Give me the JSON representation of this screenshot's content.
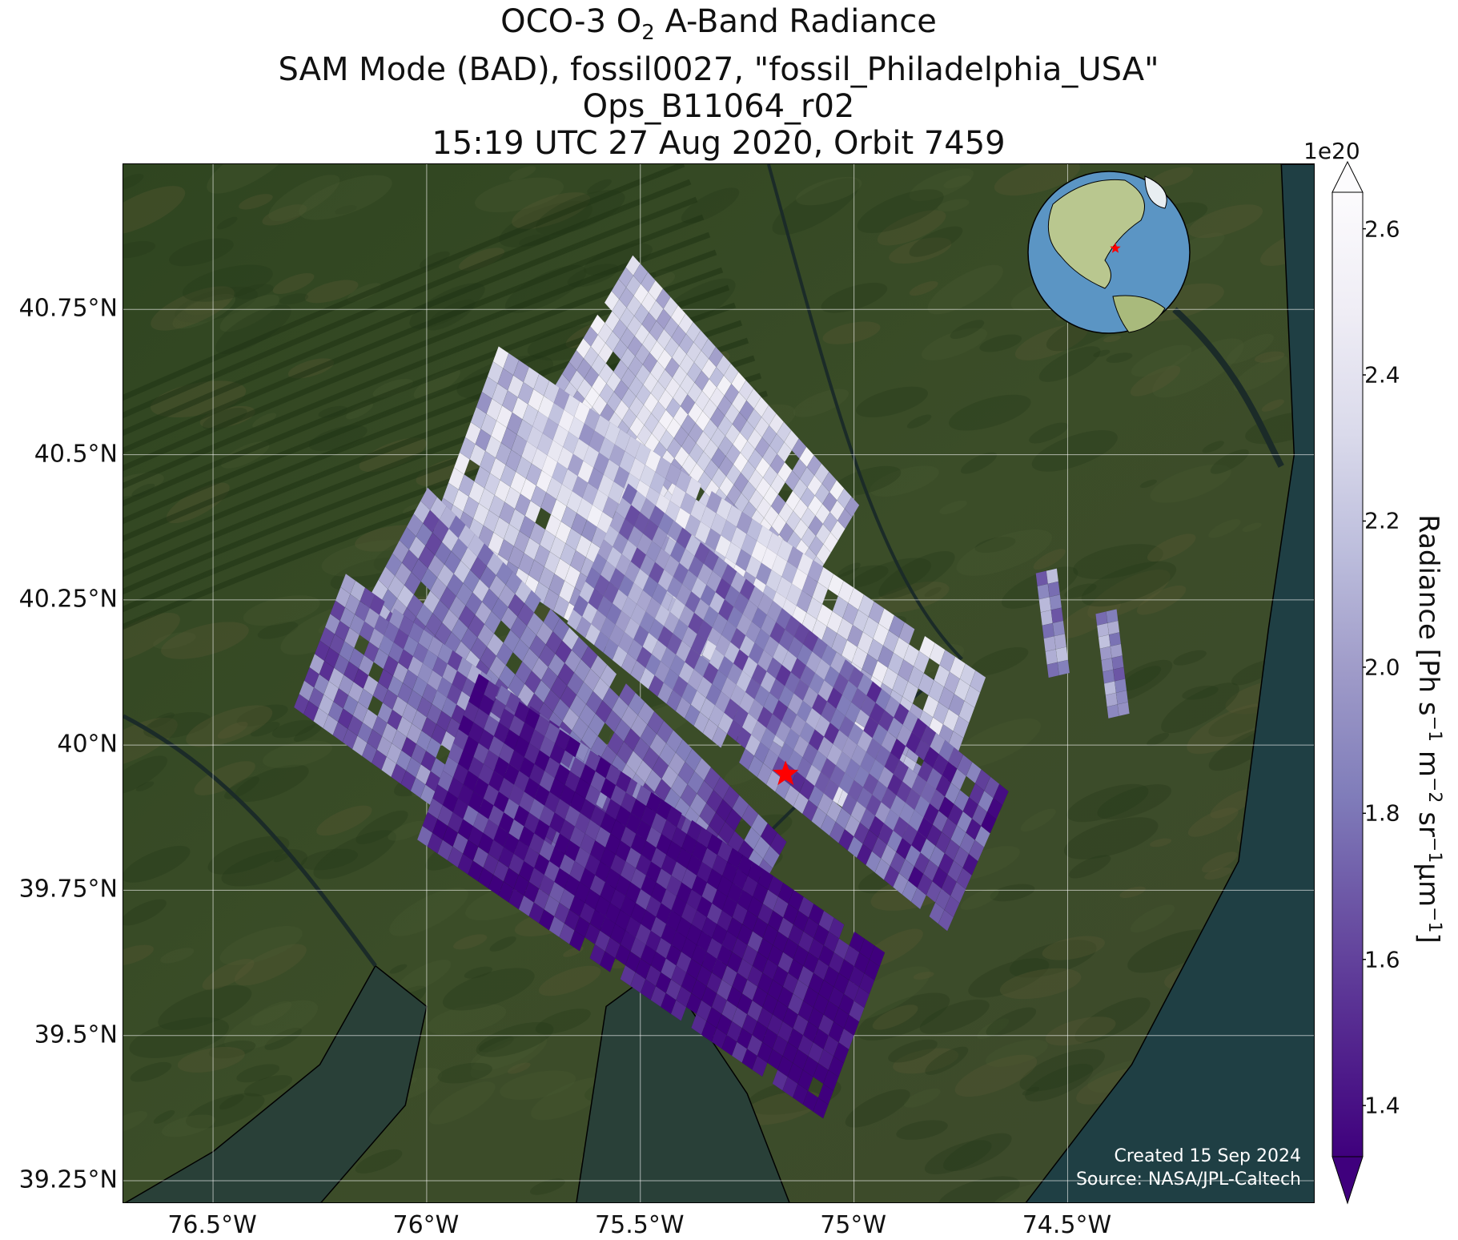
{
  "title": {
    "line1_prefix": "OCO-3 O",
    "line1_sub": "2",
    "line1_suffix": " A-Band Radiance",
    "line2": "SAM Mode (BAD), fossil0027, \"fossil_Philadelphia_USA\"",
    "line3": "Ops_B11064_r02",
    "line4": "15:19 UTC 27 Aug 2020, Orbit 7459"
  },
  "map": {
    "lon_range": [
      -76.71,
      -73.92
    ],
    "lat_range": [
      39.21,
      41.0
    ],
    "lat_ticks": [
      {
        "value": 40.75,
        "label": "40.75°N"
      },
      {
        "value": 40.5,
        "label": "40.5°N"
      },
      {
        "value": 40.25,
        "label": "40.25°N"
      },
      {
        "value": 40.0,
        "label": "40°N"
      },
      {
        "value": 39.75,
        "label": "39.75°N"
      },
      {
        "value": 39.5,
        "label": "39.5°N"
      },
      {
        "value": 39.25,
        "label": "39.25°N"
      }
    ],
    "lon_ticks": [
      {
        "value": -76.5,
        "label": "76.5°W"
      },
      {
        "value": -76.0,
        "label": "76°W"
      },
      {
        "value": -75.5,
        "label": "75.5°W"
      },
      {
        "value": -75.0,
        "label": "75°W"
      },
      {
        "value": -74.5,
        "label": "74.5°W"
      }
    ],
    "target": {
      "lon": -75.16,
      "lat": 39.95,
      "color": "#ff0000"
    },
    "land_color": "#3b4d28",
    "water_color": "#294038",
    "ocean_color": "#1f3f44",
    "swaths": [
      {
        "center_start": [
          -75.65,
          40.68
        ],
        "center_end": [
          -75.12,
          40.25
        ],
        "half_width": 0.21,
        "cols": 16,
        "rows": 30,
        "mean": 2.25
      },
      {
        "center_start": [
          -75.91,
          40.53
        ],
        "center_end": [
          -74.77,
          39.96
        ],
        "half_width": 0.175,
        "cols": 12,
        "rows": 48,
        "mean": 2.22
      },
      {
        "center_start": [
          -75.6,
          40.33
        ],
        "center_end": [
          -74.71,
          39.8
        ],
        "half_width": 0.14,
        "cols": 10,
        "rows": 42,
        "mean": 1.92
      },
      {
        "center_start": [
          -76.08,
          40.33
        ],
        "center_end": [
          -75.24,
          39.72
        ],
        "half_width": 0.14,
        "cols": 10,
        "rows": 38,
        "mean": 1.92
      },
      {
        "center_start": [
          -76.25,
          40.18
        ],
        "center_end": [
          -75.34,
          39.7
        ],
        "half_width": 0.13,
        "cols": 10,
        "rows": 40,
        "mean": 1.82
      },
      {
        "center_start": [
          -75.95,
          39.98
        ],
        "center_end": [
          -75.0,
          39.5
        ],
        "half_width": 0.16,
        "cols": 12,
        "rows": 40,
        "mean": 1.48
      },
      {
        "center_start": [
          -74.55,
          40.3
        ],
        "center_end": [
          -74.52,
          40.12
        ],
        "half_width": 0.025,
        "cols": 2,
        "rows": 8,
        "mean": 1.95
      },
      {
        "center_start": [
          -74.41,
          40.23
        ],
        "center_end": [
          -74.38,
          40.05
        ],
        "half_width": 0.025,
        "cols": 2,
        "rows": 9,
        "mean": 1.95
      }
    ]
  },
  "inset_globe": {
    "description_icon": "globe-icon"
  },
  "credits": {
    "created": "Created 15 Sep 2024",
    "source": "Source: NASA/JPL-Caltech"
  },
  "colorbar": {
    "exponent": "1e20",
    "min": 1.33,
    "max": 2.65,
    "ticks": [
      {
        "value": 1.4,
        "label": "1.4"
      },
      {
        "value": 1.6,
        "label": "1.6"
      },
      {
        "value": 1.8,
        "label": "1.8"
      },
      {
        "value": 2.0,
        "label": "2.0"
      },
      {
        "value": 2.2,
        "label": "2.2"
      },
      {
        "value": 2.4,
        "label": "2.4"
      },
      {
        "value": 2.6,
        "label": "2.6"
      }
    ],
    "label_prefix": "Radiance [Ph s",
    "label_mid1": " m",
    "label_mid2": " sr",
    "label_mid3": "μm",
    "label_suffix": "]",
    "sup1": "−1",
    "sup2": "−2",
    "sup3": "−1",
    "sup4": "−1",
    "colors": [
      "#3f007d",
      "#54278f",
      "#6a51a3",
      "#807dba",
      "#9e9ac8",
      "#bcbddc",
      "#dadaeb",
      "#efedf5",
      "#fcfbfd"
    ]
  }
}
